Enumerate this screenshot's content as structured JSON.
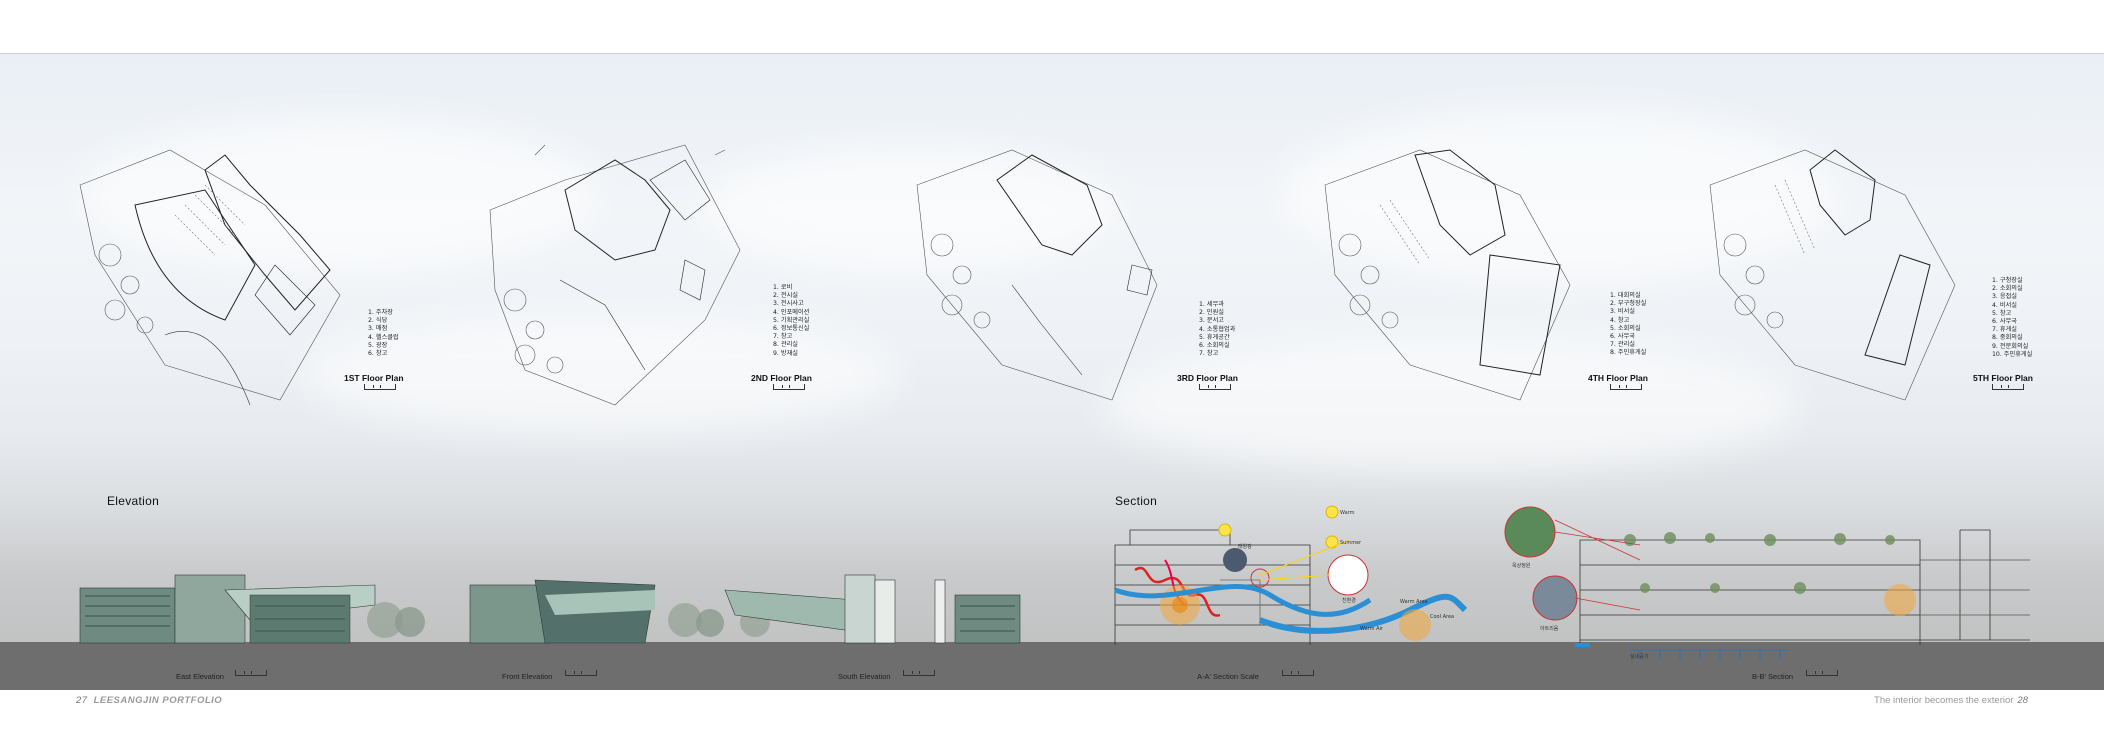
{
  "floor_plans": [
    {
      "title": "1ST Floor Plan",
      "items": [
        "1. 주차장",
        "2. 식당",
        "3. 매점",
        "4. 헬스클럽",
        "5. 광장",
        "6. 창고"
      ]
    },
    {
      "title": "2ND Floor Plan",
      "items": [
        "1. 로비",
        "2. 전시실",
        "3. 전시사고",
        "4. 인포메이션",
        "5. 기획관리실",
        "6. 정보통신실",
        "7. 창고",
        "8. 관리실",
        "9. 방재실"
      ]
    },
    {
      "title": "3RD Floor Plan",
      "items": [
        "1. 세무과",
        "2. 민원실",
        "3. 문서고",
        "4. 소통협업과",
        "5. 휴게공간",
        "6. 소회의실",
        "7. 창고"
      ]
    },
    {
      "title": "4TH Floor Plan",
      "items": [
        "1. 대회의실",
        "2. 부구청장실",
        "3. 비서실",
        "4. 창고",
        "5. 소회의실",
        "6. 사무국",
        "7. 관리실",
        "8. 주민휴게실"
      ]
    },
    {
      "title": "5TH Floor Plan",
      "items": [
        "1. 구청장실",
        "2. 소회의실",
        "3. 응접실",
        "4. 비서실",
        "5. 창고",
        "6. 사무국",
        "7. 휴게실",
        "8. 중회의실",
        "9. 전문회의실",
        "10. 주민휴게실"
      ]
    }
  ],
  "elevation": {
    "heading": "Elevation",
    "labels": [
      "East Elevation",
      "Front Elevation",
      "South Elevation"
    ]
  },
  "section": {
    "heading": "Section",
    "aa_label": "A-A' Section  Scale",
    "bb_label": "B-B' Section",
    "callouts": [
      "태양광",
      "Warm",
      "Summer",
      "친환경",
      "Warm Area",
      "Cool Area",
      "Warm Air",
      "실내공기",
      "옥상정원",
      "아트리움"
    ]
  },
  "footer": {
    "left_page": "27",
    "left_text": "LEESANGJIN PORTFOLIO",
    "right_text": "The interior becomes the exterior",
    "right_page": "28"
  },
  "colors": {
    "ground": "#6e6e6e",
    "water": "#2a8fd4",
    "heat": "#f0a020",
    "line": "#333333"
  }
}
